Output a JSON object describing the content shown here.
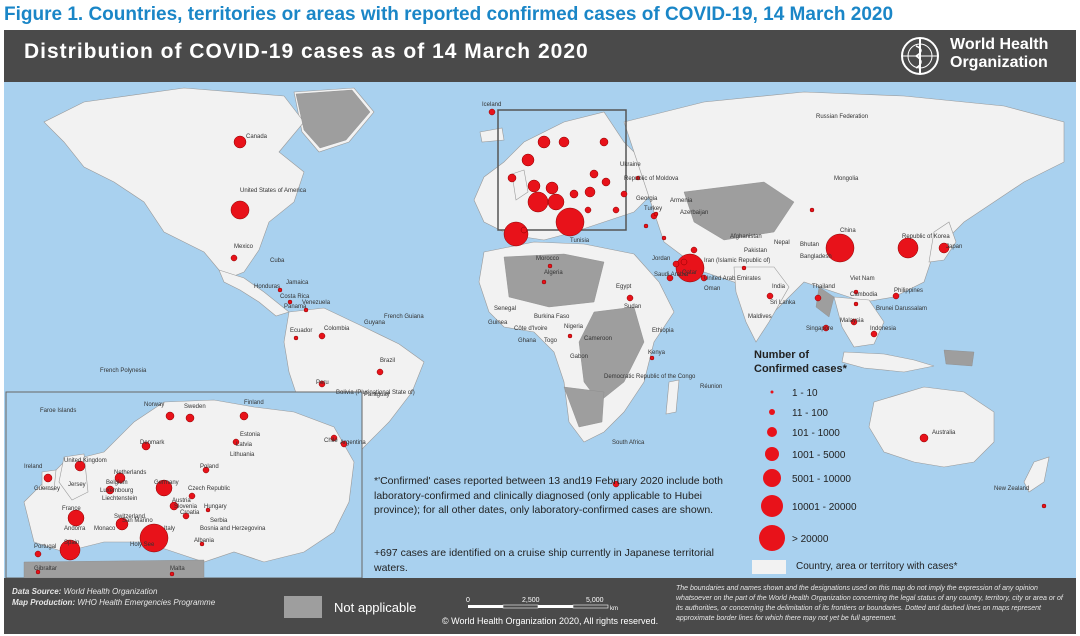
{
  "figure_caption": "Figure 1. Countries, territories or areas with reported confirmed cases of COVID-19, 14 March 2020",
  "map_title": "Distribution of COVID-19  cases as of 14 March 2020",
  "logo_text_line1": "World Health",
  "logo_text_line2": "Organization",
  "legend": {
    "title_line1": "Number of",
    "title_line2": "Confirmed cases*",
    "ranges": [
      "1 - 10",
      "11 - 100",
      "101 - 1000",
      "1001 - 5000",
      "5001 - 10000",
      "10001 - 20000",
      "> 20000"
    ],
    "country_label": "Country, area or territory with cases*",
    "not_applicable": "Not applicable"
  },
  "footnote": "*'Confirmed' cases reported between 13 and19 February 2020 include both laboratory-confirmed and clinically diagnosed (only applicable to Hubei province); for all other dates, only laboratory-confirmed cases are shown.",
  "footnote2": "+697 cases are identified on a cruise ship currently in Japanese territorial waters.",
  "footer": {
    "data_source_label": "Data Source:",
    "data_source": "World Health Organization",
    "map_production_label": "Map Production:",
    "map_production": "WHO Health Emergencies Programme",
    "scale_0": "0",
    "scale_1": "2,500",
    "scale_2": "5,000",
    "scale_unit": "km",
    "copyright": "© World Health Organization  2020,  All rights reserved.",
    "disclaimer": "The boundaries and names shown and the designations used on this map do not imply the expression of any opinion whatsoever on the part of the World Health Organization concerning the legal status of any country, territory, city or area or of its authorities, or concerning the delimitation of its frontiers or boundaries. Dotted and dashed lines on maps represent approximate border lines for which there may not yet be full agreement."
  },
  "colors": {
    "ocean": "#a9d1ef",
    "land_cases": "#f2f2f2",
    "land_none": "#9e9e9e",
    "bubble": "#e8121a",
    "header": "#4a4a4a",
    "caption": "#1a86c7"
  },
  "labels": {
    "canada": "Canada",
    "usa": "United States of America",
    "mexico": "Mexico",
    "brazil": "Brazil",
    "argentina": "Argentina",
    "chile": "Chile",
    "peru": "Peru",
    "colombia": "Colombia",
    "ecuador": "Ecuador",
    "bolivia": "Bolivia (Plurinational State of)",
    "paraguay": "Paraguay",
    "russia": "Russian Federation",
    "china": "China",
    "mongolia": "Mongolia",
    "india": "India",
    "iran": "Iran (Islamic Republic of)",
    "japan": "Japan",
    "korea": "Republic of Korea",
    "australia": "Australia",
    "new_zealand": "New Zealand",
    "south_africa": "South Africa",
    "egypt": "Egypt",
    "algeria": "Algeria",
    "morocco": "Morocco",
    "nigeria": "Nigeria",
    "kenya": "Kenya",
    "ethiopia": "Ethiopia",
    "sudan": "Sudan",
    "drc": "Democratic Republic of the Congo",
    "gabon": "Gabon",
    "cameroon": "Cameroon",
    "senegal": "Senegal",
    "iceland": "Iceland",
    "turkey": "Turkey",
    "pakistan": "Pakistan",
    "afghanistan": "Afghanistan",
    "nepal": "Nepal",
    "bhutan": "Bhutan",
    "bangladesh": "Bangladesh",
    "sri_lanka": "Sri Lanka",
    "maldives": "Maldives",
    "thailand": "Thailand",
    "viet_nam": "Viet Nam",
    "cambodia": "Cambodia",
    "philippines": "Philippines",
    "malaysia": "Malaysia",
    "singapore": "Singapore",
    "indonesia": "Indonesia",
    "brunei": "Brunei Darussalam",
    "reunion": "Réunion",
    "french_polynesia": "French Polynesia",
    "french_guiana": "French Guiana",
    "cuba": "Cuba",
    "jamaica": "Jamaica",
    "honduras": "Honduras",
    "costa_rica": "Costa Rica",
    "panama": "Panama",
    "venezuela": "Venezuela",
    "guyana": "Guyana",
    "saudi": "Saudi Arabia",
    "uae": "United Arab Emirates",
    "qatar": "Qatar",
    "oman": "Oman",
    "jordan": "Jordan",
    "georgia": "Georgia",
    "armenia": "Armenia",
    "azerbaijan": "Azerbaijan",
    "ukraine": "Ukraine",
    "moldova": "Republic of Moldova",
    "tunisia": "Tunisia",
    "togo": "Togo",
    "ghana": "Ghana",
    "cote": "Côte d'Ivoire",
    "burkina": "Burkina Faso",
    "guinea": "Guinea",
    "norway": "Norway",
    "sweden": "Sweden",
    "finland": "Finland",
    "estonia": "Estonia",
    "latvia": "Latvia",
    "lithuania": "Lithuania",
    "denmark": "Denmark",
    "uk": "United Kingdom",
    "ireland": "Ireland",
    "netherlands": "Netherlands",
    "belgium": "Belgium",
    "luxembourg": "Luxembourg",
    "germany": "Germany",
    "poland": "Poland",
    "czech": "Czech Republic",
    "austria": "Austria",
    "hungary": "Hungary",
    "switzerland": "Switzerland",
    "liechtenstein": "Liechtenstein",
    "france": "France",
    "italy": "Italy",
    "spain": "Spain",
    "portugal": "Portugal",
    "andorra": "Andorra",
    "monaco": "Monaco",
    "san_marino": "San Marino",
    "holy_see": "Holy See",
    "croatia": "Croatia",
    "serbia": "Serbia",
    "albania": "Albania",
    "malta": "Malta",
    "gibraltar": "Gibraltar",
    "guernsey": "Guernsey",
    "jersey": "Jersey",
    "faroe": "Faroe Islands",
    "bosnia": "Bosnia and Herzegovina",
    "slovenia": "Slovenia"
  }
}
